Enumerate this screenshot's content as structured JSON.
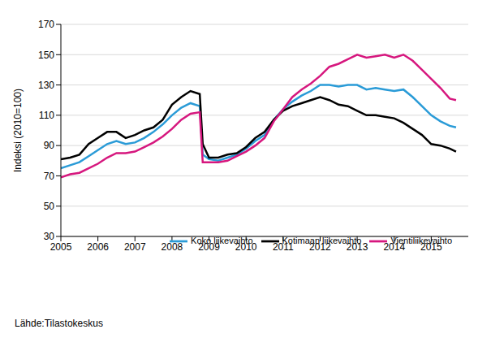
{
  "chart_data": {
    "type": "line",
    "y_label": "Indeksi (2010=100)",
    "source": "Lähde:Tilastokeskus",
    "x": [
      2005,
      2005.25,
      2005.5,
      2005.75,
      2006,
      2006.25,
      2006.5,
      2006.75,
      2007,
      2007.25,
      2007.5,
      2007.75,
      2008,
      2008.25,
      2008.5,
      2008.75,
      2008.83,
      2009,
      2009.25,
      2009.5,
      2009.75,
      2010,
      2010.25,
      2010.5,
      2010.75,
      2011,
      2011.25,
      2011.5,
      2011.75,
      2012,
      2012.25,
      2012.5,
      2012.75,
      2013,
      2013.25,
      2013.5,
      2013.75,
      2014,
      2014.25,
      2014.5,
      2014.75,
      2015,
      2015.25,
      2015.5,
      2015.67
    ],
    "series": [
      {
        "name": "Koko liikevaihto",
        "color": "#2a9bd7",
        "values": [
          75,
          77,
          79,
          83,
          87,
          91,
          93,
          91,
          92,
          95,
          99,
          104,
          110,
          115,
          118,
          116,
          84,
          81,
          80,
          82,
          84,
          88,
          93,
          97,
          107,
          114,
          119,
          123,
          126,
          130,
          130,
          129,
          130,
          130,
          127,
          128,
          127,
          126,
          127,
          122,
          116,
          110,
          106,
          103,
          102
        ]
      },
      {
        "name": "Kotimaan liikevaihto",
        "color": "#000000",
        "values": [
          81,
          82,
          84,
          91,
          95,
          99,
          99,
          95,
          97,
          100,
          102,
          107,
          117,
          122,
          126,
          124,
          91,
          82,
          82,
          84,
          85,
          89,
          95,
          99,
          107,
          113,
          116,
          118,
          120,
          122,
          120,
          117,
          116,
          113,
          110,
          110,
          109,
          108,
          105,
          101,
          97,
          91,
          90,
          88,
          86
        ]
      },
      {
        "name": "Vientiliikevaihto",
        "color": "#d6177e",
        "values": [
          69,
          71,
          72,
          75,
          78,
          82,
          85,
          85,
          86,
          89,
          92,
          96,
          101,
          107,
          111,
          112,
          79,
          79,
          79,
          80,
          83,
          86,
          90,
          95,
          106,
          114,
          122,
          127,
          131,
          136,
          142,
          144,
          147,
          150,
          148,
          149,
          150,
          148,
          150,
          146,
          140,
          134,
          128,
          121,
          120
        ]
      }
    ],
    "xlim": [
      2005,
      2016
    ],
    "xticks": [
      2005,
      2006,
      2007,
      2008,
      2009,
      2010,
      2011,
      2012,
      2013,
      2014,
      2015
    ],
    "ylim": [
      30,
      170
    ],
    "yticks": [
      30,
      50,
      70,
      90,
      110,
      130,
      150,
      170
    ],
    "grid": true,
    "legend": "lower right"
  }
}
